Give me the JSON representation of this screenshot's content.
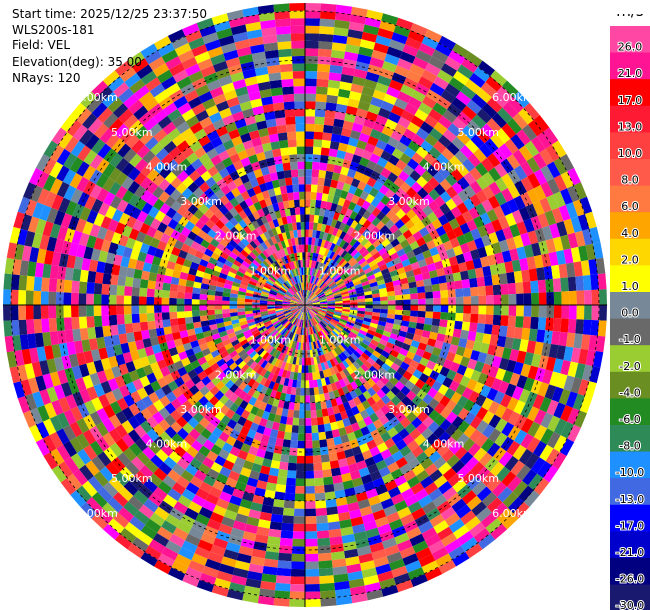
{
  "info": {
    "start_time": "Start time: 2025/12/25 23:37:50",
    "site": "WLS200s-181",
    "field": "Field: VEL",
    "elevation": "Elevation(deg): 35.00",
    "nrays": "NRays: 120"
  },
  "colorbar": {
    "unit": "m/s",
    "bins": [
      {
        "label": "26.0",
        "color": "#ff47a3"
      },
      {
        "label": "21.0",
        "color": "#ff1493"
      },
      {
        "label": "17.0",
        "color": "#ff0000"
      },
      {
        "label": "13.0",
        "color": "#ff1a33"
      },
      {
        "label": "10.0",
        "color": "#ff4040"
      },
      {
        "label": "8.0",
        "color": "#ff5a4a"
      },
      {
        "label": "6.0",
        "color": "#ff7a40"
      },
      {
        "label": "4.0",
        "color": "#ffa500"
      },
      {
        "label": "2.0",
        "color": "#ffd700"
      },
      {
        "label": "1.0",
        "color": "#ffff00"
      },
      {
        "label": "0.0",
        "color": "#778899"
      },
      {
        "label": "-1.0",
        "color": "#696969"
      },
      {
        "label": "-2.0",
        "color": "#9acd32"
      },
      {
        "label": "-4.0",
        "color": "#6b8e23"
      },
      {
        "label": "-6.0",
        "color": "#228b22"
      },
      {
        "label": "-8.0",
        "color": "#2e8b57"
      },
      {
        "label": "-10.0",
        "color": "#1e90ff"
      },
      {
        "label": "-13.0",
        "color": "#4169e1"
      },
      {
        "label": "-17.0",
        "color": "#0000ff"
      },
      {
        "label": "-21.0",
        "color": "#0000cd"
      },
      {
        "label": "-26.0",
        "color": "#000080"
      },
      {
        "label": "-30.0",
        "color": "#191970"
      }
    ]
  },
  "chart_data": {
    "type": "heatmap",
    "field": "VEL",
    "unit": "m/s",
    "nrays": 120,
    "elevation_deg": 35.0,
    "range_rings_km": [
      1.0,
      2.0,
      3.0,
      4.0,
      5.0,
      6.0
    ],
    "ring_labels": [
      "1.00km",
      "2.00km",
      "3.00km",
      "4.00km",
      "5.00km",
      "6.00km"
    ],
    "value_range": [
      -30.0,
      26.0
    ],
    "note_values": "noisy velocity field spanning full colour scale"
  }
}
